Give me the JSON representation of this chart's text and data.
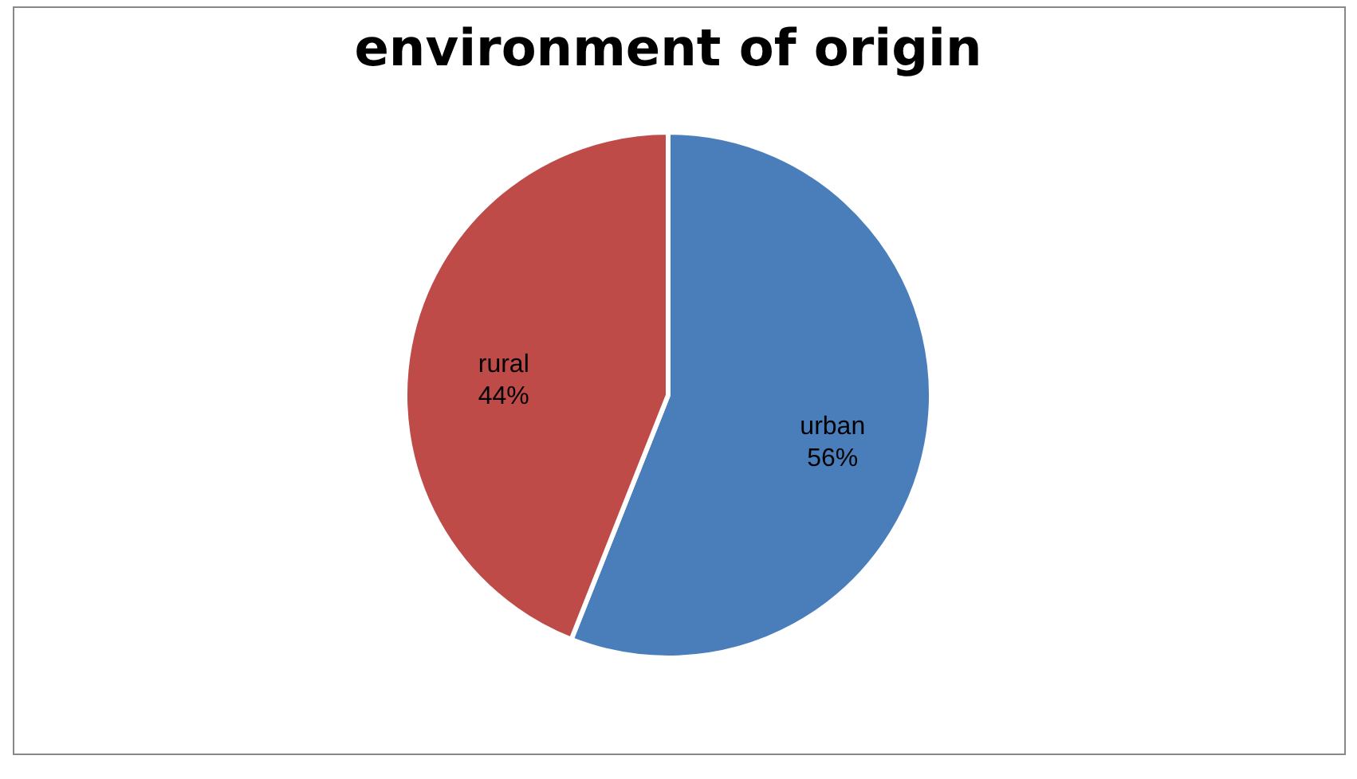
{
  "chart_data": {
    "type": "pie",
    "title": "environment of origin",
    "categories": [
      "urban",
      "rural"
    ],
    "values": [
      56,
      44
    ],
    "colors": [
      "#4a7ebb",
      "#be4b48"
    ],
    "value_labels": [
      "56%",
      "44%"
    ],
    "legend": false
  }
}
